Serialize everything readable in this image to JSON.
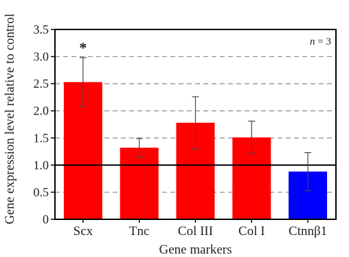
{
  "chart_data": {
    "type": "bar",
    "title": "",
    "xlabel": "Gene markers",
    "ylabel": "Gene expression level relative to control",
    "categories": [
      "Scx",
      "Tnc",
      "Col III",
      "Col I",
      "Ctnnβ1"
    ],
    "values": [
      2.53,
      1.32,
      1.78,
      1.51,
      0.88
    ],
    "errors": [
      0.45,
      0.17,
      0.48,
      0.3,
      0.35
    ],
    "bar_colors": [
      "#ff0000",
      "#ff0000",
      "#ff0000",
      "#ff0000",
      "#0000ff"
    ],
    "ylim": [
      0,
      3.5
    ],
    "yticks": [
      "0",
      "0.5",
      "1.0",
      "1.5",
      "2.0",
      "2.5",
      "3.0",
      "3.5"
    ],
    "grid": "dashed horizontal",
    "reference_line": 1.0,
    "annotations": {
      "significance_marker": "*",
      "significance_category": "Scx",
      "sample_size": "n = 3"
    }
  }
}
